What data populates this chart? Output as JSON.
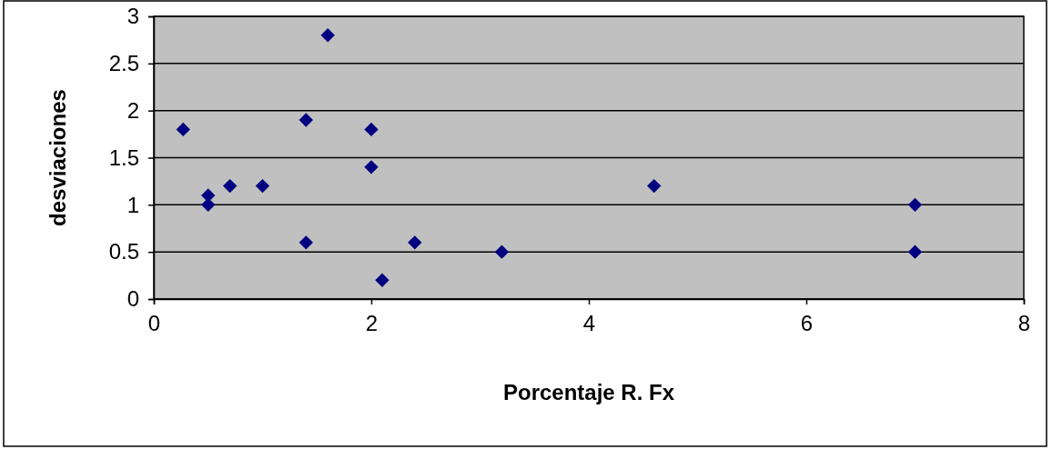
{
  "chart_data": {
    "type": "scatter",
    "xlabel": "Porcentaje R. Fx",
    "ylabel": "desviaciones",
    "x": [
      0.27,
      0.5,
      0.5,
      0.7,
      1.0,
      1.4,
      1.4,
      1.6,
      2.0,
      2.0,
      2.1,
      2.4,
      3.2,
      4.6,
      7.0,
      7.0
    ],
    "series": [
      {
        "color": "#000080",
        "values": [
          1.8,
          1.1,
          1.0,
          1.2,
          1.2,
          1.9,
          0.6,
          2.8,
          1.8,
          1.4,
          0.2,
          0.6,
          0.5,
          1.2,
          1.0,
          0.5
        ]
      }
    ],
    "xlim": [
      0,
      8
    ],
    "xticks": [
      0,
      2,
      4,
      6,
      8
    ],
    "ylim": [
      0,
      3
    ],
    "yticks": [
      0,
      0.5,
      1,
      1.5,
      2,
      2.5,
      3
    ],
    "grid": "y",
    "marker": "diamond"
  }
}
